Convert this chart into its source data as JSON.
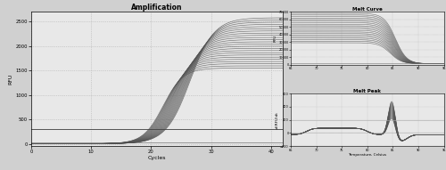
{
  "amplification": {
    "title": "Amplification",
    "xlabel": "Cycles",
    "ylabel": "RFU",
    "xlim": [
      0,
      42
    ],
    "ylim": [
      -50,
      2700
    ],
    "xticks": [
      0,
      10,
      20,
      30,
      40
    ],
    "yticks": [
      0,
      500,
      1000,
      1500,
      2000,
      2500
    ],
    "n_curves": 24,
    "line_color": "#555555",
    "flat_color": "#444444",
    "bg_color": "#e8e8e8"
  },
  "melt_curve": {
    "title": "Melt Curve",
    "xlabel": "",
    "ylabel": "RFU",
    "xlim": [
      65,
      95
    ],
    "ylim": [
      0,
      70000
    ],
    "xticks": [
      65,
      70,
      75,
      80,
      85,
      90,
      95
    ],
    "yticks": [
      0,
      10000,
      20000,
      30000,
      40000,
      50000,
      60000,
      70000
    ],
    "n_curves": 20,
    "line_color": "#555555",
    "bg_color": "#e8e8e8"
  },
  "melt_peak": {
    "title": "Melt Peak",
    "xlabel": "Temperature, Celsius",
    "ylabel": "-d(RFU)dt",
    "xlim": [
      65,
      95
    ],
    "ylim": [
      -200,
      600
    ],
    "xticks": [
      65,
      70,
      75,
      80,
      85,
      90,
      95
    ],
    "yticks": [
      -200,
      0,
      200,
      400,
      600
    ],
    "n_curves": 20,
    "line_color": "#555555",
    "bg_color": "#e8e8e8"
  },
  "fig_bg": "#d0d0d0"
}
